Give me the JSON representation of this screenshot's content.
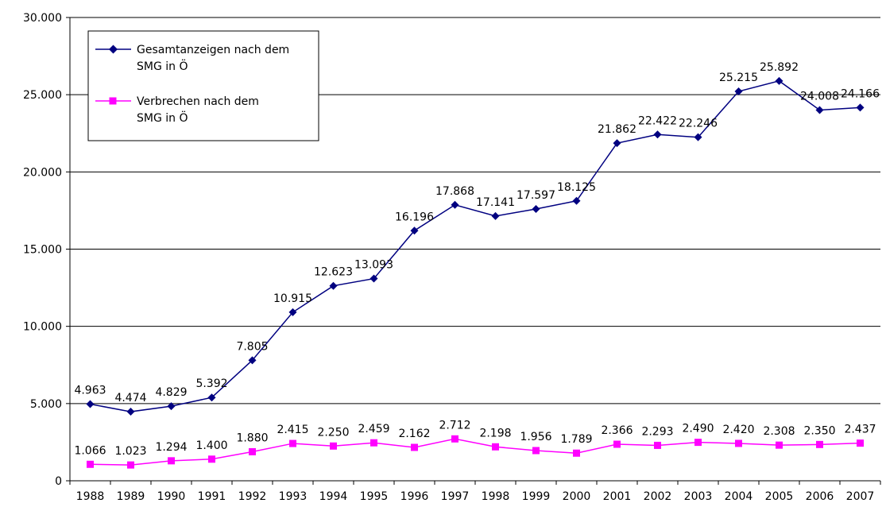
{
  "chart_data": {
    "type": "line",
    "categories": [
      "1988",
      "1989",
      "1990",
      "1991",
      "1992",
      "1993",
      "1994",
      "1995",
      "1996",
      "1997",
      "1998",
      "1999",
      "2000",
      "2001",
      "2002",
      "2003",
      "2004",
      "2005",
      "2006",
      "2007"
    ],
    "ylim": [
      0,
      30000
    ],
    "yticks": [
      0,
      5000,
      10000,
      15000,
      20000,
      25000,
      30000
    ],
    "ytick_labels": [
      "0",
      "5.000",
      "10.000",
      "15.000",
      "20.000",
      "25.000",
      "30.000"
    ],
    "grid": true,
    "legend_position": "top-left",
    "series": [
      {
        "name": "Gesamtanzeigen nach dem SMG in Ö",
        "color": "#000080",
        "marker": "diamond",
        "values": [
          4963,
          4474,
          4829,
          5392,
          7805,
          10915,
          12623,
          13093,
          16196,
          17868,
          17141,
          17597,
          18125,
          21862,
          22422,
          22246,
          25215,
          25892,
          24008,
          24166
        ],
        "labels": [
          "4.963",
          "4.474",
          "4.829",
          "5.392",
          "7.805",
          "10.915",
          "12.623",
          "13.093",
          "16.196",
          "17.868",
          "17.141",
          "17.597",
          "18.125",
          "21.862",
          "22.422",
          "22.246",
          "25.215",
          "25.892",
          "24.008",
          "24.166"
        ]
      },
      {
        "name": "Verbrechen nach dem SMG in Ö",
        "color": "#FF00FF",
        "marker": "square",
        "values": [
          1066,
          1023,
          1294,
          1400,
          1880,
          2415,
          2250,
          2459,
          2162,
          2712,
          2198,
          1956,
          1789,
          2366,
          2293,
          2490,
          2420,
          2308,
          2350,
          2437
        ],
        "labels": [
          "1.066",
          "1.023",
          "1.294",
          "1.400",
          "1.880",
          "2.415",
          "2.250",
          "2.459",
          "2.162",
          "2.712",
          "2.198",
          "1.956",
          "1.789",
          "2.366",
          "2.293",
          "2.490",
          "2.420",
          "2.308",
          "2.350",
          "2.437"
        ]
      }
    ]
  },
  "legend": {
    "item1_line1": "Gesamtanzeigen nach dem",
    "item1_line2": "SMG in Ö",
    "item2_line1": "Verbrechen nach dem",
    "item2_line2": "SMG in Ö"
  }
}
